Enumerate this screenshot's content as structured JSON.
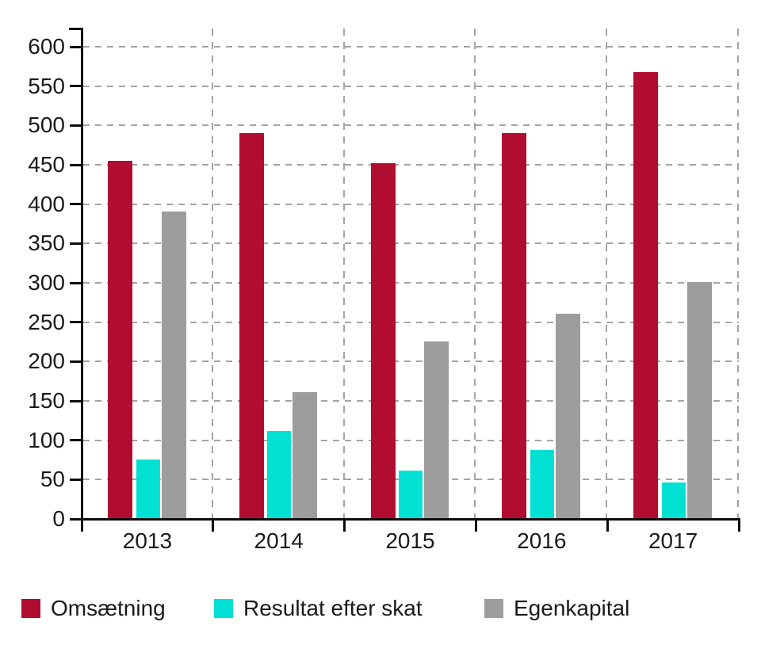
{
  "chart_data": {
    "type": "bar",
    "title": "",
    "categories": [
      "2013",
      "2014",
      "2015",
      "2016",
      "2017"
    ],
    "series": [
      {
        "name": "Omsætning",
        "color": "#b00d31",
        "values": [
          455,
          490,
          452,
          490,
          568
        ]
      },
      {
        "name": "Resultat efter skat",
        "color": "#00e0d3",
        "values": [
          76,
          112,
          61,
          88,
          46
        ]
      },
      {
        "name": "Egenkapital",
        "color": "#9d9d9d",
        "values": [
          391,
          161,
          226,
          261,
          301
        ]
      }
    ],
    "xlabel": "",
    "ylabel": "",
    "ylim": [
      0,
      600
    ],
    "yticks": [
      0,
      50,
      100,
      150,
      200,
      250,
      300,
      350,
      400,
      450,
      500,
      550,
      600
    ],
    "grid": "dashed-horizontal-and-category-boundaries",
    "legend_position": "bottom-left",
    "colors": {
      "grid": "#a4a4a4",
      "axis": "#0d0d0d",
      "text": "#1a1a1a",
      "background": "#ffffff"
    }
  }
}
